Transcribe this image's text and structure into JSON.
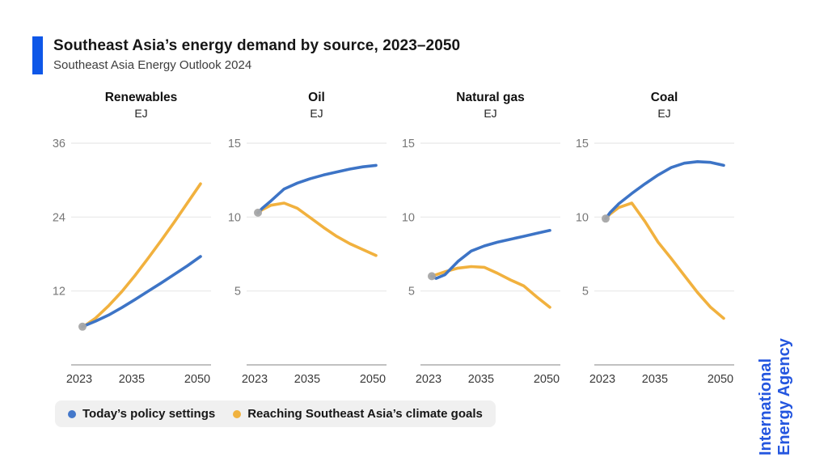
{
  "header": {
    "title": "Southeast Asia’s energy demand by source, 2023–2050",
    "subtitle": "Southeast Asia Energy Outlook 2024"
  },
  "branding": {
    "logo_line1": "International",
    "logo_line2": "Energy Agency",
    "logo_color": "#2456df",
    "accent_color": "#0e57e8"
  },
  "legend": {
    "items": [
      {
        "label": "Today’s policy settings",
        "color": "#4478ca"
      },
      {
        "label": "Reaching Southeast Asia’s climate goals",
        "color": "#f0b23f"
      }
    ]
  },
  "colors": {
    "series_blue": "#3d74c6",
    "series_yellow": "#f1b13e",
    "start_dot": "#a6a6a6",
    "gridline": "#e8e8e8",
    "axis_line": "#9c9c9c",
    "ytick_label": "#777777",
    "xtick_label": "#3a3a3a"
  },
  "chart_data": [
    {
      "type": "line",
      "title": "Renewables",
      "unit": "EJ",
      "x": [
        2023,
        2024,
        2026,
        2029,
        2032,
        2035,
        2038,
        2041,
        2044,
        2047,
        2050
      ],
      "xticks": [
        2023,
        2035,
        2050
      ],
      "yticks": [
        12,
        24,
        36
      ],
      "ylim": [
        0,
        38
      ],
      "series": [
        {
          "name": "Today’s policy settings",
          "values": [
            6.2,
            6.5,
            7.1,
            8.1,
            9.3,
            10.6,
            11.95,
            13.3,
            14.7,
            16.1,
            17.6
          ]
        },
        {
          "name": "Reaching Southeast Asia’s climate goals",
          "values": [
            6.2,
            6.6,
            7.6,
            9.6,
            11.9,
            14.5,
            17.3,
            20.2,
            23.2,
            26.3,
            29.4
          ]
        }
      ]
    },
    {
      "type": "line",
      "title": "Oil",
      "unit": "EJ",
      "x": [
        2023,
        2024,
        2026,
        2029,
        2032,
        2035,
        2038,
        2041,
        2044,
        2047,
        2050
      ],
      "xticks": [
        2023,
        2035,
        2050
      ],
      "yticks": [
        5,
        10,
        15
      ],
      "ylim": [
        0,
        16
      ],
      "series": [
        {
          "name": "Today’s policy settings",
          "values": [
            10.3,
            10.6,
            11.1,
            11.9,
            12.3,
            12.6,
            12.85,
            13.05,
            13.25,
            13.4,
            13.5
          ]
        },
        {
          "name": "Reaching Southeast Asia’s climate goals",
          "values": [
            10.3,
            10.5,
            10.8,
            10.95,
            10.6,
            9.95,
            9.3,
            8.7,
            8.2,
            7.8,
            7.4
          ]
        }
      ]
    },
    {
      "type": "line",
      "title": "Natural gas",
      "unit": "EJ",
      "x": [
        2023,
        2024,
        2026,
        2029,
        2032,
        2035,
        2038,
        2041,
        2044,
        2047,
        2050
      ],
      "xticks": [
        2023,
        2035,
        2050
      ],
      "yticks": [
        5,
        10,
        15
      ],
      "ylim": [
        0,
        16
      ],
      "series": [
        {
          "name": "Today’s policy settings",
          "values": [
            6.0,
            5.85,
            6.1,
            7.0,
            7.7,
            8.05,
            8.3,
            8.5,
            8.7,
            8.9,
            9.1
          ]
        },
        {
          "name": "Reaching Southeast Asia’s climate goals",
          "values": [
            6.0,
            6.1,
            6.3,
            6.55,
            6.65,
            6.6,
            6.2,
            5.75,
            5.35,
            4.6,
            3.9
          ]
        }
      ]
    },
    {
      "type": "line",
      "title": "Coal",
      "unit": "EJ",
      "x": [
        2023,
        2024,
        2026,
        2029,
        2032,
        2035,
        2038,
        2041,
        2044,
        2047,
        2050
      ],
      "xticks": [
        2023,
        2035,
        2050
      ],
      "yticks": [
        5,
        10,
        15
      ],
      "ylim": [
        0,
        16
      ],
      "series": [
        {
          "name": "Today’s policy settings",
          "values": [
            9.9,
            10.3,
            10.9,
            11.6,
            12.25,
            12.85,
            13.35,
            13.65,
            13.75,
            13.7,
            13.5
          ]
        },
        {
          "name": "Reaching Southeast Asia’s climate goals",
          "values": [
            9.9,
            10.2,
            10.65,
            10.95,
            9.7,
            8.3,
            7.2,
            6.05,
            4.9,
            3.9,
            3.15
          ]
        }
      ]
    }
  ]
}
